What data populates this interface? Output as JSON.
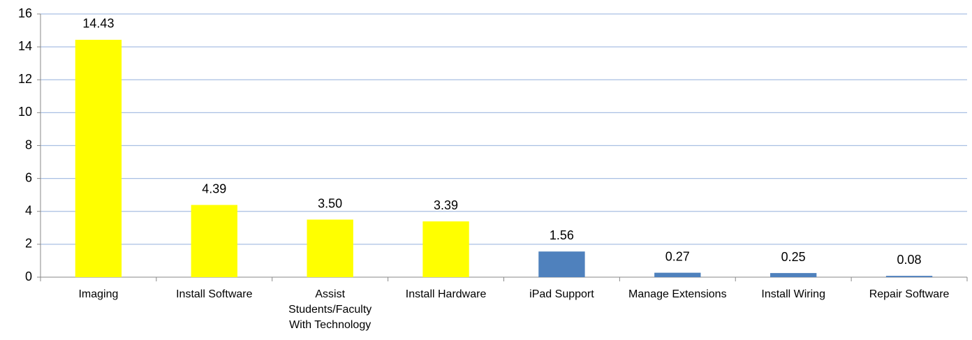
{
  "chart_data": {
    "type": "bar",
    "categories": [
      "Imaging",
      "Install Software",
      "Assist Students/Faculty With Technology",
      "Install Hardware",
      "iPad Support",
      "Manage Extensions",
      "Install Wiring",
      "Repair Software"
    ],
    "values": [
      14.43,
      4.39,
      3.5,
      3.39,
      1.56,
      0.27,
      0.25,
      0.08
    ],
    "value_labels": [
      "14.43",
      "4.39",
      "3.50",
      "3.39",
      "1.56",
      "0.27",
      "0.25",
      "0.08"
    ],
    "colors": [
      "#ffff00",
      "#ffff00",
      "#ffff00",
      "#ffff00",
      "#4f81bd",
      "#4f81bd",
      "#4f81bd",
      "#4f81bd"
    ],
    "ylim": [
      0,
      16
    ],
    "yticks": [
      0,
      2,
      4,
      6,
      8,
      10,
      12,
      14,
      16
    ],
    "grid": true
  }
}
